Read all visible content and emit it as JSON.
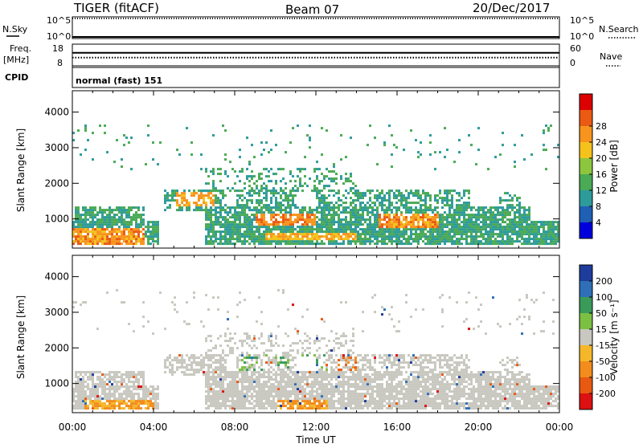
{
  "header": {
    "radar": "TIGER (fitACF)",
    "beam": "Beam 07",
    "date": "20/Dec/2017"
  },
  "nsky_panel": {
    "left_label": "N.Sky",
    "right_label": "N.Search",
    "left_ticks": [
      "10^5",
      "10^0"
    ],
    "right_ticks": [
      "10^5",
      "10^0"
    ]
  },
  "freq_panel": {
    "left_label_line1": "Freq.",
    "left_label_line2": "[MHz]",
    "right_label": "Nave",
    "left_ticks": [
      "18",
      "8"
    ],
    "right_ticks": [
      "60",
      "0"
    ],
    "freq_mhz": 11.8,
    "nave": 36
  },
  "cpid": {
    "label": "CPID",
    "value": "normal (fast) 151"
  },
  "chart_data": [
    {
      "type": "heatmap",
      "name": "Power",
      "ylabel": "Slant Range [km]",
      "yticks": [
        1000,
        2000,
        3000,
        4000
      ],
      "ylim": [
        180,
        4600
      ],
      "xlim_hours": [
        0,
        24
      ],
      "colorbar_label": "Power [dB]",
      "colorbar_ticks": [
        "4",
        "8",
        "12",
        "16",
        "20",
        "24",
        "28"
      ],
      "colorbar_colors": [
        "#0000dd",
        "#1f5fb4",
        "#2e9b9b",
        "#4aaa55",
        "#8cc63f",
        "#f4c21b",
        "#f7941d",
        "#ea5a12",
        "#dd0000"
      ]
    },
    {
      "type": "heatmap",
      "name": "Velocity",
      "ylabel": "Slant Range [km]",
      "yticks": [
        1000,
        2000,
        3000,
        4000
      ],
      "ylim": [
        180,
        4600
      ],
      "xlim_hours": [
        0,
        24
      ],
      "colorbar_label": "Velocity [m s⁻¹]",
      "colorbar_ticks": [
        "200",
        "100",
        "50",
        "15",
        "-15",
        "-50",
        "-100",
        "-200"
      ],
      "colorbar_colors": [
        "#1e3c9b",
        "#2e6fb7",
        "#3a9a5a",
        "#7bc043",
        "#c8c8c0",
        "#f5b72a",
        "#f28c1c",
        "#e85a12",
        "#dd1111"
      ]
    }
  ],
  "time_axis": {
    "label": "Time UT",
    "ticks": [
      "00:00",
      "04:00",
      "08:00",
      "12:00",
      "16:00",
      "20:00",
      "00:00"
    ]
  }
}
